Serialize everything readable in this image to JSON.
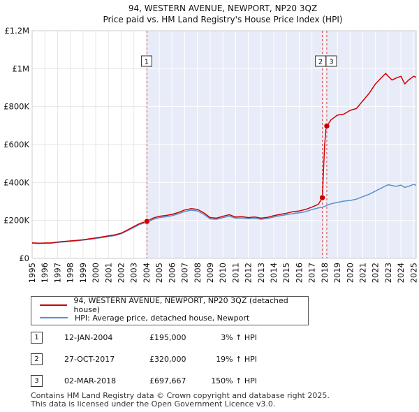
{
  "title": {
    "line1": "94, WESTERN AVENUE, NEWPORT, NP20 3QZ",
    "line2": "Price paid vs. HM Land Registry's House Price Index (HPI)"
  },
  "legend": {
    "property_label": "94, WESTERN AVENUE, NEWPORT, NP20 3QZ (detached house)",
    "hpi_label": "HPI: Average price, detached house, Newport"
  },
  "transactions": [
    {
      "num": "1",
      "date": "12-JAN-2004",
      "price": "£195,000",
      "hpi": "3% ↑ HPI"
    },
    {
      "num": "2",
      "date": "27-OCT-2017",
      "price": "£320,000",
      "hpi": "19% ↑ HPI"
    },
    {
      "num": "3",
      "date": "02-MAR-2018",
      "price": "£697,667",
      "hpi": "150% ↑ HPI"
    }
  ],
  "footer": {
    "line1": "Contains HM Land Registry data © Crown copyright and database right 2025.",
    "line2": "This data is licensed under the Open Government Licence v3.0."
  },
  "chart_data": {
    "type": "line",
    "title": "94, WESTERN AVENUE, NEWPORT, NP20 3QZ — Price paid vs. HM Land Registry's House Price Index (HPI)",
    "xlabel": "",
    "ylabel": "",
    "xlim": [
      1995,
      2025.2
    ],
    "ylim": [
      0,
      1200000
    ],
    "x_ticks": [
      1995,
      1996,
      1997,
      1998,
      1999,
      2000,
      2001,
      2002,
      2003,
      2004,
      2005,
      2006,
      2007,
      2008,
      2009,
      2010,
      2011,
      2012,
      2013,
      2014,
      2015,
      2016,
      2017,
      2018,
      2019,
      2020,
      2021,
      2022,
      2023,
      2024,
      2025
    ],
    "y_ticks": [
      {
        "value": 0,
        "label": "£0"
      },
      {
        "value": 200000,
        "label": "£200K"
      },
      {
        "value": 400000,
        "label": "£400K"
      },
      {
        "value": 600000,
        "label": "£600K"
      },
      {
        "value": 800000,
        "label": "£800K"
      },
      {
        "value": 1000000,
        "label": "£1M"
      },
      {
        "value": 1200000,
        "label": "£1.2M"
      }
    ],
    "grid": true,
    "shaded_region": [
      2004.03,
      2025.2
    ],
    "colors": {
      "property": "#cc0000",
      "hpi": "#5b8fd0",
      "marker_line": "#dd4444",
      "shade": "#e8ecf8"
    },
    "series": [
      {
        "name": "94, WESTERN AVENUE, NEWPORT, NP20 3QZ (detached house)",
        "color": "#cc0000",
        "x": [
          1995,
          1995.5,
          1996,
          1996.5,
          1997,
          1997.5,
          1998,
          1998.5,
          1999,
          1999.5,
          2000,
          2000.5,
          2001,
          2001.5,
          2002,
          2002.5,
          2003,
          2003.5,
          2004.03,
          2004.5,
          2005,
          2005.5,
          2006,
          2006.5,
          2007,
          2007.5,
          2008,
          2008.5,
          2009,
          2009.5,
          2010,
          2010.5,
          2011,
          2011.5,
          2012,
          2012.5,
          2013,
          2013.5,
          2014,
          2014.5,
          2015,
          2015.5,
          2016,
          2016.5,
          2017,
          2017.5,
          2017.82,
          2017.9,
          2018.0,
          2018.1,
          2018.17,
          2018.5,
          2019,
          2019.5,
          2020,
          2020.5,
          2021,
          2021.5,
          2022,
          2022.5,
          2022.8,
          2023,
          2023.3,
          2023.6,
          2024,
          2024.3,
          2024.6,
          2025,
          2025.2
        ],
        "values": [
          82000,
          80000,
          81000,
          82000,
          86000,
          89000,
          92000,
          95000,
          98000,
          103000,
          108000,
          113000,
          119000,
          124000,
          133000,
          150000,
          168000,
          185000,
          195000,
          212000,
          222000,
          226000,
          232000,
          242000,
          255000,
          262000,
          258000,
          240000,
          215000,
          212000,
          222000,
          230000,
          218000,
          220000,
          215000,
          218000,
          212000,
          216000,
          225000,
          232000,
          238000,
          246000,
          250000,
          258000,
          270000,
          285000,
          320000,
          450000,
          600000,
          680000,
          697667,
          730000,
          755000,
          760000,
          780000,
          790000,
          830000,
          870000,
          920000,
          955000,
          975000,
          960000,
          940000,
          950000,
          960000,
          920000,
          940000,
          960000,
          955000
        ]
      },
      {
        "name": "HPI: Average price, detached house, Newport",
        "color": "#5b8fd0",
        "x": [
          1995,
          1995.5,
          1996,
          1996.5,
          1997,
          1997.5,
          1998,
          1998.5,
          1999,
          1999.5,
          2000,
          2000.5,
          2001,
          2001.5,
          2002,
          2002.5,
          2003,
          2003.5,
          2004.03,
          2004.5,
          2005,
          2005.5,
          2006,
          2006.5,
          2007,
          2007.5,
          2008,
          2008.5,
          2009,
          2009.5,
          2010,
          2010.5,
          2011,
          2011.5,
          2012,
          2012.5,
          2013,
          2013.5,
          2014,
          2014.5,
          2015,
          2015.5,
          2016,
          2016.5,
          2017,
          2017.5,
          2017.82,
          2018.17,
          2018.5,
          2019,
          2019.5,
          2020,
          2020.5,
          2021,
          2021.5,
          2022,
          2022.5,
          2022.8,
          2023,
          2023.3,
          2023.6,
          2024,
          2024.3,
          2024.6,
          2025,
          2025.2
        ],
        "values": [
          80000,
          78000,
          79000,
          80000,
          84000,
          87000,
          90000,
          93000,
          96000,
          100000,
          105000,
          110000,
          115000,
          120000,
          130000,
          146000,
          163000,
          180000,
          190000,
          205000,
          215000,
          219000,
          225000,
          235000,
          247000,
          254000,
          250000,
          232000,
          208000,
          206000,
          215000,
          222000,
          212000,
          213000,
          209000,
          211000,
          206000,
          210000,
          218000,
          225000,
          230000,
          236000,
          240000,
          246000,
          257000,
          266000,
          269000,
          279000,
          288000,
          295000,
          302000,
          305000,
          312000,
          325000,
          338000,
          355000,
          372000,
          382000,
          388000,
          384000,
          380000,
          386000,
          374000,
          380000,
          390000,
          385000
        ]
      }
    ],
    "markers": [
      {
        "num": "1",
        "x": 2004.03,
        "value": 195000
      },
      {
        "num": "2",
        "x": 2017.82,
        "value": 320000
      },
      {
        "num": "3",
        "x": 2018.17,
        "value": 697667
      }
    ]
  }
}
